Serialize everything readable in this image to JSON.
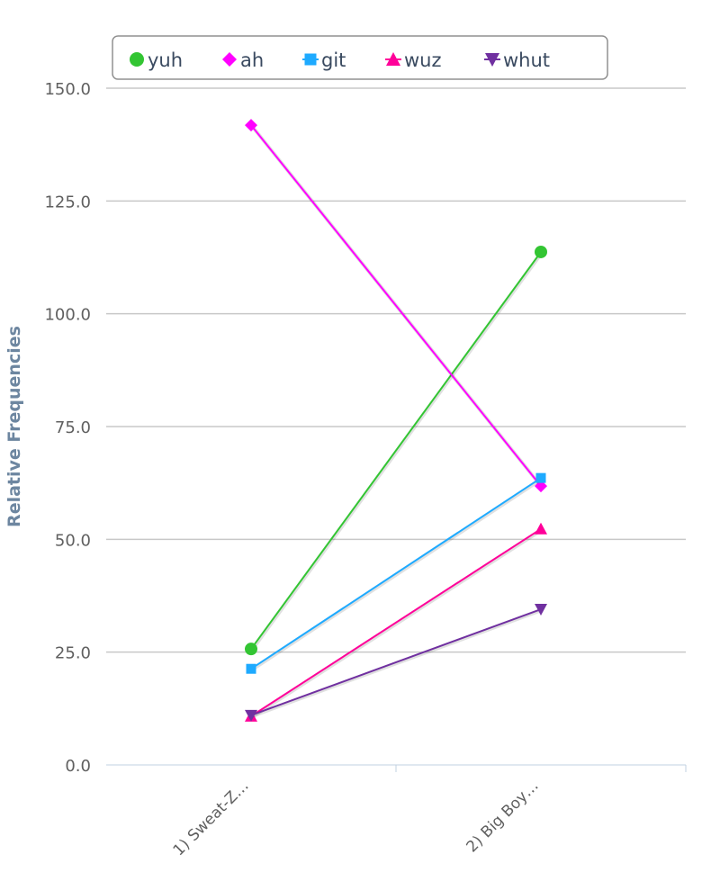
{
  "chart_data": {
    "type": "line",
    "title": "",
    "xlabel": "",
    "ylabel": "Relative Frequencies",
    "ylim": [
      0,
      150
    ],
    "yticks": [
      "0.0",
      "25.0",
      "50.0",
      "75.0",
      "100.0",
      "125.0",
      "150.0"
    ],
    "ytick_values": [
      0,
      25,
      50,
      75,
      100,
      125,
      150
    ],
    "categories": [
      "1) Sweat-Z…",
      "2) Big Boy…"
    ],
    "grid": true,
    "legend_position": "top",
    "series": [
      {
        "name": "yuh",
        "color": "#33c533",
        "marker": "circle",
        "values": [
          25.7,
          113.7
        ]
      },
      {
        "name": "ah",
        "color": "#ff00ff",
        "marker": "diamond",
        "values": [
          141.8,
          61.8
        ]
      },
      {
        "name": "git",
        "color": "#1eaaff",
        "marker": "square",
        "values": [
          21.3,
          63.6
        ]
      },
      {
        "name": "wuz",
        "color": "#ff0099",
        "marker": "triangle",
        "values": [
          10.8,
          52.3
        ]
      },
      {
        "name": "whut",
        "color": "#7030a0",
        "marker": "triangle-down",
        "values": [
          11.0,
          34.5
        ]
      }
    ]
  }
}
